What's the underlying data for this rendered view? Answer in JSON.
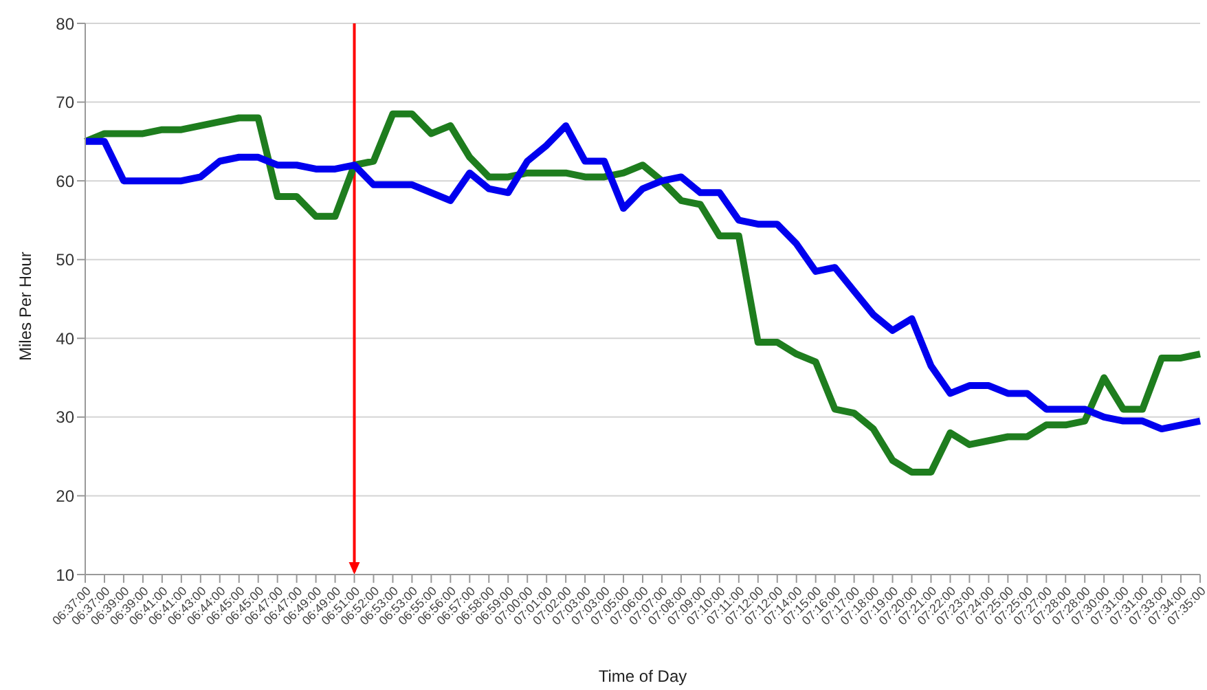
{
  "chart_data": {
    "type": "line",
    "xlabel": "Time of Day",
    "ylabel": "Miles Per Hour",
    "categories": [
      "06:37:00",
      "06:37:00",
      "06:39:00",
      "06:39:00",
      "06:41:00",
      "06:41:00",
      "06:43:00",
      "06:44:00",
      "06:45:00",
      "06:45:00",
      "06:47:00",
      "06:47:00",
      "06:49:00",
      "06:49:00",
      "06:51:00",
      "06:52:00",
      "06:53:00",
      "06:53:00",
      "06:55:00",
      "06:56:00",
      "06:57:00",
      "06:58:00",
      "06:59:00",
      "07:00:00",
      "07:01:00",
      "07:02:00",
      "07:03:00",
      "07:03:00",
      "07:05:00",
      "07:06:00",
      "07:07:00",
      "07:08:00",
      "07:09:00",
      "07:10:00",
      "07:11:00",
      "07:12:00",
      "07:12:00",
      "07:14:00",
      "07:15:00",
      "07:16:00",
      "07:17:00",
      "07:18:00",
      "07:19:00",
      "07:20:00",
      "07:21:00",
      "07:22:00",
      "07:23:00",
      "07:24:00",
      "07:25:00",
      "07:25:00",
      "07:27:00",
      "07:28:00",
      "07:28:00",
      "07:30:00",
      "07:31:00",
      "07:31:00",
      "07:33:00",
      "07:34:00",
      "07:35:00"
    ],
    "series": [
      {
        "color": "#1e7d1e",
        "values": [
          65,
          66,
          66,
          66,
          66.5,
          66.5,
          67,
          67.5,
          68,
          68,
          58,
          58,
          55.5,
          55.5,
          62,
          62.5,
          68.5,
          68.5,
          66,
          67,
          63,
          60.5,
          60.5,
          61,
          61,
          61,
          60.5,
          60.5,
          61,
          62,
          60,
          57.5,
          57,
          53,
          53,
          39.5,
          39.5,
          38,
          37,
          31,
          30.5,
          28.5,
          24.5,
          23,
          23,
          28,
          26.5,
          27,
          27.5,
          27.5,
          29,
          29,
          29.5,
          35,
          31,
          31,
          37.5,
          37.5,
          38
        ]
      },
      {
        "color": "#0000ee",
        "values": [
          65,
          65,
          60,
          60,
          60,
          60,
          60.5,
          62.5,
          63,
          63,
          62,
          62,
          61.5,
          61.5,
          62,
          59.5,
          59.5,
          59.5,
          58.5,
          57.5,
          61,
          59,
          58.5,
          62.5,
          64.5,
          67,
          62.5,
          62.5,
          56.5,
          59,
          60,
          60.5,
          58.5,
          58.5,
          55,
          54.5,
          54.5,
          52,
          48.5,
          49,
          46,
          43,
          41,
          42.5,
          36.5,
          33,
          34,
          34,
          33,
          33,
          31,
          31,
          31,
          30,
          29.5,
          29.5,
          28.5,
          29,
          29.5
        ]
      }
    ],
    "ylim": [
      10,
      80
    ],
    "yticks": [
      10,
      20,
      30,
      40,
      50,
      60,
      70,
      80
    ],
    "grid": "y",
    "legend": false,
    "marker": "none",
    "line_style": "solid",
    "ref_lines": [
      {
        "axis": "x",
        "value": "06:51:00",
        "color": "#ff0000"
      }
    ]
  }
}
